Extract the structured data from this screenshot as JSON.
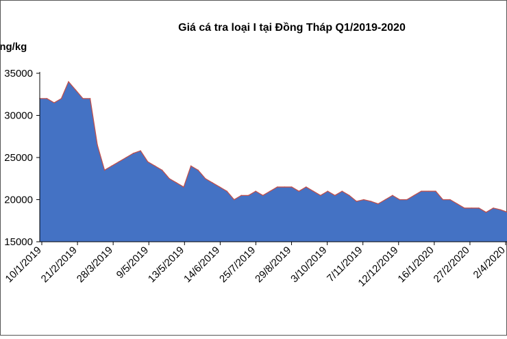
{
  "chart_data": {
    "type": "area",
    "title": "Giá cá tra loại I tại Đồng Tháp Q1/2019-2020",
    "ylabel": "đồng/kg",
    "ylim": [
      15000,
      35000
    ],
    "yticks": [
      "15000",
      "20000",
      "25000",
      "30000",
      "35000"
    ],
    "xticks": [
      "10/1/2019",
      "21/2/2019",
      "28/3/2019",
      "9/5/2019",
      "13/5/2019",
      "14/6/2019",
      "25/7/2019",
      "29/8/2019",
      "3/10/2019",
      "7/11/2019",
      "12/12/2019",
      "16/1/2020",
      "27/2/2020",
      "2/4/2020"
    ],
    "grid": false,
    "colors": {
      "fill": "#4472c4",
      "line": "#c0504d"
    },
    "series": [
      {
        "values": [
          32000,
          32000,
          31500,
          32000,
          34000,
          33000,
          32000,
          32000,
          26500,
          23500,
          24000,
          24500,
          25000,
          25500,
          25800,
          24500,
          24000,
          23500,
          22500,
          22000,
          21500,
          24000,
          23500,
          22500,
          22000,
          21500,
          21000,
          20000,
          20500,
          20500,
          21000,
          20500,
          21000,
          21500,
          21500,
          21500,
          21000,
          21500,
          21000,
          20500,
          21000,
          20500,
          21000,
          20500,
          19800,
          20000,
          19800,
          19500,
          20000,
          20500,
          20000,
          20000,
          20500,
          21000,
          21000,
          21000,
          20000,
          20000,
          19500,
          19000,
          19000,
          19000,
          18500,
          19000,
          18800,
          18500
        ]
      }
    ]
  }
}
